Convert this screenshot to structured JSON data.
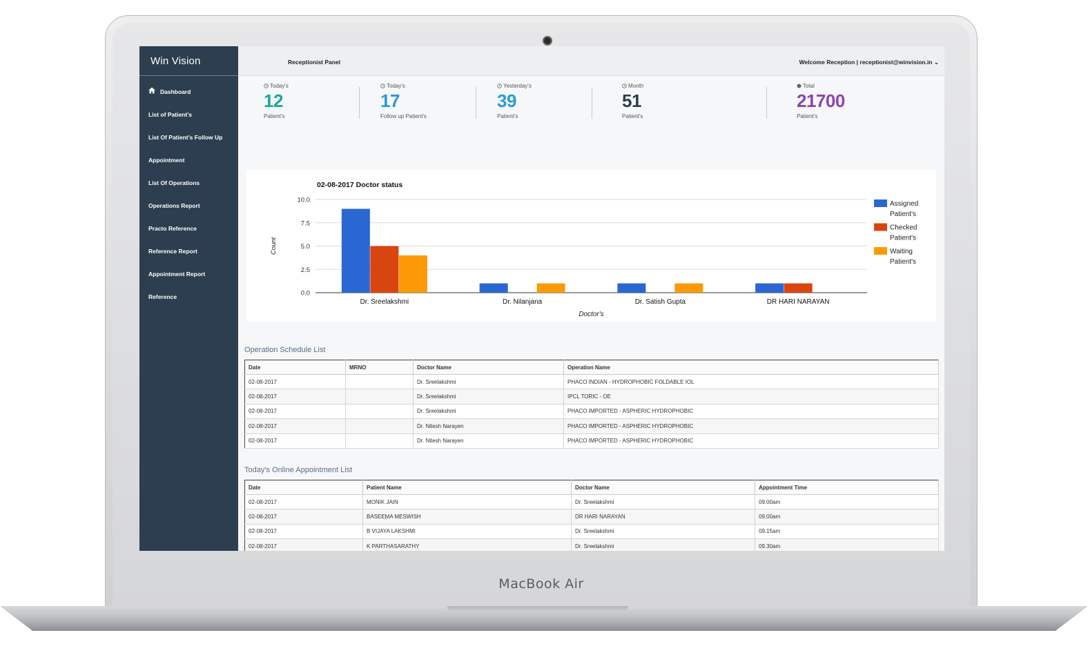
{
  "device": {
    "brand_label": "MacBook Air"
  },
  "sidebar": {
    "brand": "Win Vision",
    "items": [
      {
        "label": "Dashboard",
        "icon": "home-icon"
      },
      {
        "label": "List of Patient's"
      },
      {
        "label": "List Of Patient's Follow Up"
      },
      {
        "label": "Appointment"
      },
      {
        "label": "List Of Operations"
      },
      {
        "label": "Operations Report"
      },
      {
        "label": "Practo Reference"
      },
      {
        "label": "Reference Report"
      },
      {
        "label": "Appointment Report"
      },
      {
        "label": "Reference"
      }
    ]
  },
  "header": {
    "panel_title": "Receptionist Panel",
    "welcome": "Welcome Reception | receptionist@winvision.in",
    "caret": "⌄"
  },
  "stats": [
    {
      "label": "Today's",
      "value": "12",
      "sub": "Patient's",
      "color": "#1aa99a"
    },
    {
      "label": "Today's",
      "value": "17",
      "sub": "Follow up Patient's",
      "color": "#2a9bd6"
    },
    {
      "label": "Yesterday's",
      "value": "39",
      "sub": "Patient's",
      "color": "#2a9bd6"
    },
    {
      "label": "Month",
      "value": "51",
      "sub": "Patient's",
      "color": "#2c3e50"
    },
    {
      "label": "Total",
      "value": "21700",
      "sub": "Patient's",
      "color": "#8e44ad"
    }
  ],
  "chart_data": {
    "type": "bar",
    "title": "02-08-2017 Doctor status",
    "xlabel": "Doctor's",
    "ylabel": "Count",
    "ylim": [
      0,
      10
    ],
    "yticks": [
      "10.0",
      "7.5",
      "5.0",
      "2.5",
      "0.0"
    ],
    "grid": true,
    "legend": "right",
    "categories": [
      "Dr. Sreelakshmi",
      "Dr. Nilanjana",
      "Dr. Satish Gupta",
      "DR HARI NARAYAN"
    ],
    "series": [
      {
        "name": "Assigned Patient's",
        "legend_lines": [
          "Assigned",
          "Patient's"
        ],
        "color": "#2a67d2",
        "values": [
          9,
          1,
          1,
          1
        ]
      },
      {
        "name": "Checked Patient's",
        "legend_lines": [
          "Checked",
          "Patient's"
        ],
        "color": "#d94510",
        "values": [
          5,
          0,
          0,
          1
        ]
      },
      {
        "name": "Waiting Patient's",
        "legend_lines": [
          "Waiting",
          "Patient's"
        ],
        "color": "#fb9a06",
        "values": [
          4,
          1,
          1,
          0
        ]
      }
    ]
  },
  "operations": {
    "title": "Operation Schedule List",
    "headers": [
      "Date",
      "MRNO",
      "Doctor Name",
      "Operation Name"
    ],
    "rows": [
      [
        "02-08-2017",
        "",
        "Dr. Sreelakshmi",
        "PHACO INDIAN - HYDROPHOBIC FOLDABLE IOL"
      ],
      [
        "02-08-2017",
        "",
        "Dr. Sreelakshmi",
        "IPCL TORIC - OE"
      ],
      [
        "02-08-2017",
        "",
        "Dr. Sreelakshmi",
        "PHACO IMPORTED - ASPHERIC HYDROPHOBIC"
      ],
      [
        "02-08-2017",
        "",
        "Dr. Nitesh Narayen",
        "PHACO IMPORTED - ASPHERIC HYDROPHOBIC"
      ],
      [
        "02-08-2017",
        "",
        "Dr. Nitesh Narayen",
        "PHACO IMPORTED - ASPHERIC HYDROPHOBIC"
      ]
    ]
  },
  "appointments": {
    "title": "Today's Online Appointment List",
    "headers": [
      "Date",
      "Patient Name",
      "Doctor Name",
      "Appointment Time"
    ],
    "rows": [
      [
        "02-08-2017",
        "MONIK JAIN",
        "Dr. Sreelakshmi",
        "09.00am"
      ],
      [
        "02-08-2017",
        "BASEEMA MESWISH",
        "DR HARI NARAYAN",
        "09.00am"
      ],
      [
        "02-08-2017",
        "B VIJAYA LAKSHMI",
        "Dr. Sreelakshmi",
        "09.15am"
      ],
      [
        "02-08-2017",
        "K PARTHASARATHY",
        "Dr. Sreelakshmi",
        "09.30am"
      ]
    ]
  }
}
